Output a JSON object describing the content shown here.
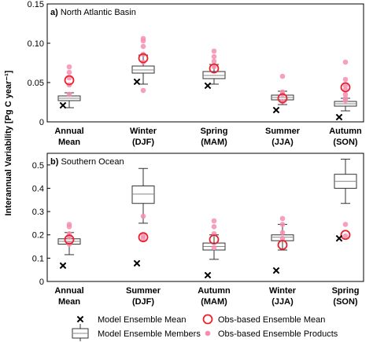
{
  "chart_data": {
    "type": "box",
    "ylabel": "Interannual Variability [Pg C year⁻¹]",
    "legend": {
      "position": "bottom",
      "items": {
        "model_mean": "Model Ensemble Mean",
        "obs_mean": "Obs-based Ensemble Mean",
        "members": "Model Ensemble Members",
        "products": "Obs-based Ensemble Products"
      }
    },
    "colors": {
      "obs": "#e8212d",
      "products": "#f48fb1",
      "box": "#333333"
    },
    "panels": [
      {
        "id": "a",
        "label": "a)",
        "title": "North Atlantic Basin",
        "ylim": [
          0,
          0.15
        ],
        "yticks": [
          {
            "value": 0,
            "label": "0"
          },
          {
            "value": 0.05,
            "label": "0.05"
          },
          {
            "value": 0.1,
            "label": "0.10"
          },
          {
            "value": 0.15,
            "label": "0.15"
          }
        ],
        "categories": [
          {
            "line1": "Annual",
            "line2": "Mean",
            "box": {
              "whisker_low": 0.018,
              "q1": 0.027,
              "median": 0.03,
              "q3": 0.033,
              "whisker_high": 0.037
            },
            "model_mean": 0.021,
            "obs_mean": 0.053,
            "products": [
              0.035,
              0.047,
              0.056,
              0.063,
              0.07
            ]
          },
          {
            "line1": "Winter",
            "line2": "(DJF)",
            "box": {
              "whisker_low": 0.048,
              "q1": 0.062,
              "median": 0.066,
              "q3": 0.071,
              "whisker_high": 0.085
            },
            "model_mean": 0.051,
            "obs_mean": 0.081,
            "products": [
              0.04,
              0.076,
              0.086,
              0.096,
              0.103,
              0.106
            ]
          },
          {
            "line1": "Spring",
            "line2": "(MAM)",
            "box": {
              "whisker_low": 0.048,
              "q1": 0.055,
              "median": 0.059,
              "q3": 0.064,
              "whisker_high": 0.073
            },
            "model_mean": 0.046,
            "obs_mean": 0.068,
            "products": [
              0.07,
              0.077,
              0.083,
              0.09
            ]
          },
          {
            "line1": "Summer",
            "line2": "(JJA)",
            "box": {
              "whisker_low": 0.022,
              "q1": 0.028,
              "median": 0.031,
              "q3": 0.034,
              "whisker_high": 0.039
            },
            "model_mean": 0.015,
            "obs_mean": 0.03,
            "products": [
              0.026,
              0.035,
              0.038,
              0.058
            ]
          },
          {
            "line1": "Autumn",
            "line2": "(SON)",
            "box": {
              "whisker_low": 0.014,
              "q1": 0.02,
              "median": 0.023,
              "q3": 0.026,
              "whisker_high": 0.03
            },
            "model_mean": 0.006,
            "obs_mean": 0.044,
            "products": [
              0.027,
              0.03,
              0.035,
              0.041,
              0.046,
              0.054,
              0.076
            ]
          }
        ]
      },
      {
        "id": "b",
        "label": "b)",
        "title": "Southern Ocean",
        "ylim": [
          0,
          0.55
        ],
        "yticks": [
          {
            "value": 0,
            "label": "0"
          },
          {
            "value": 0.1,
            "label": "0.1"
          },
          {
            "value": 0.2,
            "label": "0.2"
          },
          {
            "value": 0.3,
            "label": "0.3"
          },
          {
            "value": 0.4,
            "label": "0.4"
          },
          {
            "value": 0.5,
            "label": "0.5"
          }
        ],
        "categories": [
          {
            "line1": "Annual",
            "line2": "Mean",
            "box": {
              "whisker_low": 0.115,
              "q1": 0.16,
              "median": 0.172,
              "q3": 0.183,
              "whisker_high": 0.21
            },
            "model_mean": 0.068,
            "obs_mean": 0.18,
            "products": [
              0.16,
              0.19,
              0.205,
              0.235,
              0.245
            ]
          },
          {
            "line1": "Summer",
            "line2": "(DJF)",
            "box": {
              "whisker_low": 0.25,
              "q1": 0.335,
              "median": 0.375,
              "q3": 0.41,
              "whisker_high": 0.485
            },
            "model_mean": 0.078,
            "obs_mean": 0.19,
            "products": [
              0.185,
              0.195,
              0.28
            ]
          },
          {
            "line1": "Autumn",
            "line2": "(MAM)",
            "box": {
              "whisker_low": 0.095,
              "q1": 0.135,
              "median": 0.15,
              "q3": 0.165,
              "whisker_high": 0.2
            },
            "model_mean": 0.027,
            "obs_mean": 0.18,
            "products": [
              0.145,
              0.205,
              0.235,
              0.26
            ]
          },
          {
            "line1": "Winter",
            "line2": "(JJA)",
            "box": {
              "whisker_low": 0.135,
              "q1": 0.175,
              "median": 0.19,
              "q3": 0.2,
              "whisker_high": 0.245
            },
            "model_mean": 0.047,
            "obs_mean": 0.157,
            "products": [
              0.185,
              0.21,
              0.245,
              0.27
            ]
          },
          {
            "line1": "Spring",
            "line2": "(SON)",
            "box": {
              "whisker_low": 0.335,
              "q1": 0.4,
              "median": 0.43,
              "q3": 0.46,
              "whisker_high": 0.525
            },
            "model_mean": 0.185,
            "obs_mean": 0.2,
            "products": [
              0.195,
              0.245
            ]
          }
        ]
      }
    ]
  }
}
